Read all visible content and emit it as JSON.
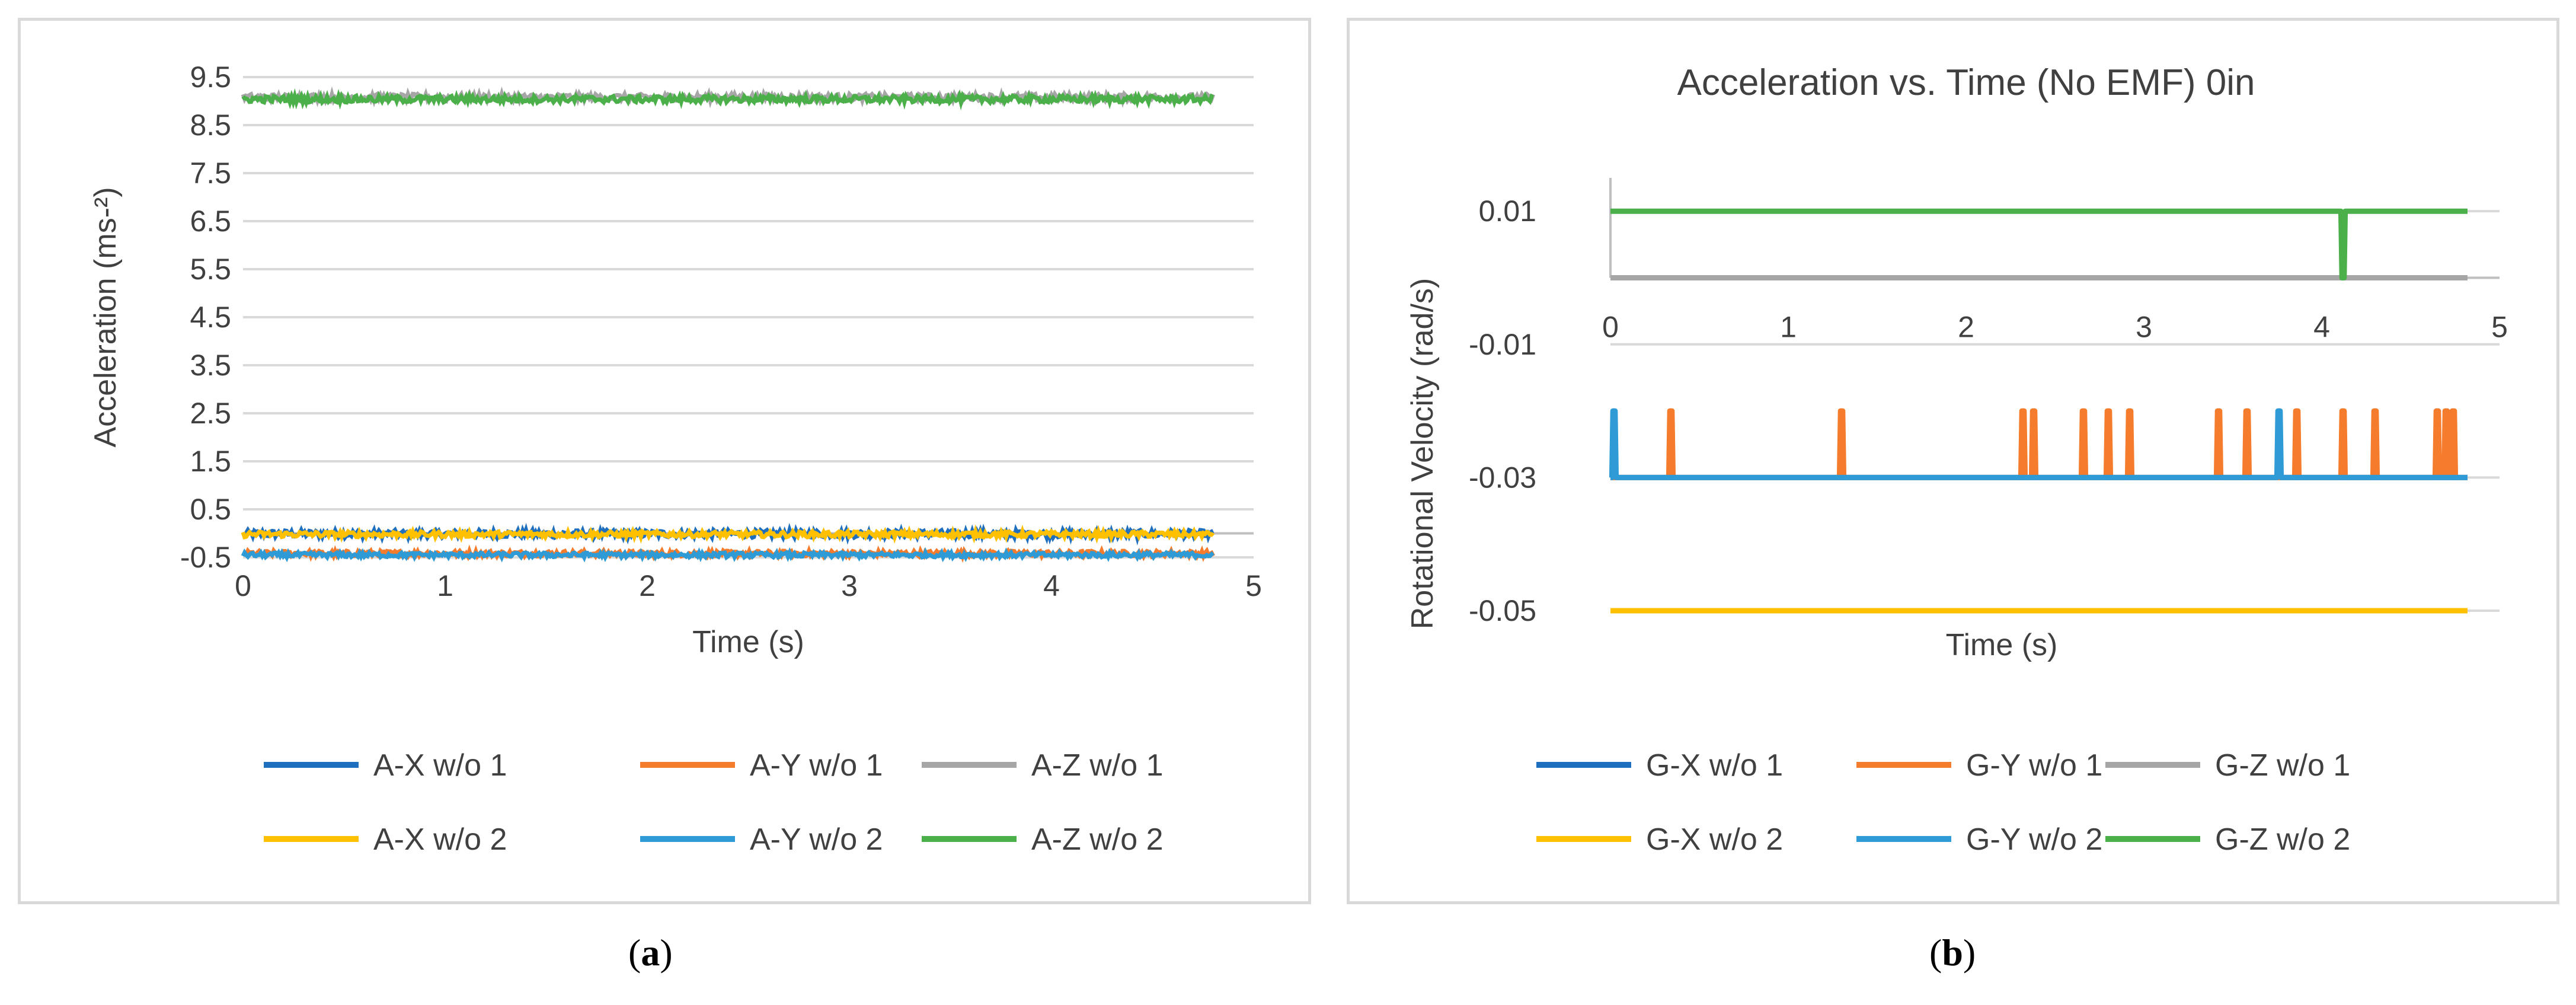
{
  "captions": {
    "a_open": "(",
    "a_letter": "a",
    "a_close": ")",
    "b_open": "(",
    "b_letter": "b",
    "b_close": ")"
  },
  "colors": {
    "dark_blue": "#1f6fbf",
    "orange": "#f47c2c",
    "gray": "#a6a6a6",
    "yellow": "#ffc000",
    "light_blue": "#2e9bd6",
    "green": "#4cb04a"
  },
  "chart_data": [
    {
      "type": "line",
      "title": "",
      "xlabel": "Time (s)",
      "ylabel": "Acceleration (ms-²)",
      "xlim": [
        0,
        5
      ],
      "ylim": [
        -0.5,
        9.5
      ],
      "x_ticks": [
        "0",
        "1",
        "2",
        "3",
        "4",
        "5"
      ],
      "y_ticks": [
        "9.5",
        "8.5",
        "7.5",
        "6.5",
        "5.5",
        "4.5",
        "3.5",
        "2.5",
        "1.5",
        "0.5",
        "-0.5"
      ],
      "series": [
        {
          "name": "A-X w/o 1",
          "color": "#1f6fbf",
          "x_range": [
            0,
            4.8
          ],
          "mean": -0.01,
          "noise": 0.08
        },
        {
          "name": "A-Y w/o 1",
          "color": "#f47c2c",
          "x_range": [
            0,
            4.8
          ],
          "mean": -0.42,
          "noise": 0.06
        },
        {
          "name": "A-Z w/o 1",
          "color": "#a6a6a6",
          "x_range": [
            0,
            4.8
          ],
          "mean": 9.08,
          "noise": 0.07
        },
        {
          "name": "A-X w/o 2",
          "color": "#ffc000",
          "x_range": [
            0,
            4.8
          ],
          "mean": -0.02,
          "noise": 0.06
        },
        {
          "name": "A-Y w/o 2",
          "color": "#2e9bd6",
          "x_range": [
            0,
            4.8
          ],
          "mean": -0.45,
          "noise": 0.05
        },
        {
          "name": "A-Z w/o 2",
          "color": "#4cb04a",
          "x_range": [
            0,
            4.8
          ],
          "mean": 9.04,
          "noise": 0.07
        }
      ]
    },
    {
      "type": "line",
      "title": "Acceleration vs. Time (No EMF) 0in",
      "xlabel": "Time (s)",
      "ylabel": "Rotational Velocity (rad/s)",
      "xlim": [
        0,
        5
      ],
      "ylim": [
        -0.05,
        0.015
      ],
      "x_ticks": [
        "0",
        "1",
        "2",
        "3",
        "4",
        "5"
      ],
      "y_ticks": [
        "0.01",
        "-0.01",
        "-0.03",
        "-0.05"
      ],
      "y_tick_values": [
        0.01,
        -0.01,
        -0.03,
        -0.05
      ],
      "series": [
        {
          "name": "G-X w/o 1",
          "color": "#1f6fbf",
          "x_range": [
            0,
            4.82
          ],
          "base": -0.03,
          "spikes": []
        },
        {
          "name": "G-Y w/o 1",
          "color": "#f47c2c",
          "x_range": [
            0,
            4.82
          ],
          "base": -0.03,
          "spike_to": -0.02,
          "spikes": [
            0.34,
            1.3,
            2.32,
            2.38,
            2.66,
            2.8,
            2.92,
            3.42,
            3.58,
            3.86,
            4.12,
            4.3,
            4.65,
            4.7,
            4.74
          ]
        },
        {
          "name": "G-Z w/o 1",
          "color": "#a6a6a6",
          "x_range": [
            0,
            4.82
          ],
          "base": 0.0,
          "spikes": []
        },
        {
          "name": "G-X w/o 2",
          "color": "#ffc000",
          "x_range": [
            0,
            4.82
          ],
          "base": -0.05,
          "spikes": []
        },
        {
          "name": "G-Y w/o 2",
          "color": "#2e9bd6",
          "x_range": [
            0,
            4.82
          ],
          "base": -0.03,
          "spike_to": -0.02,
          "spikes": [
            0.02,
            3.76
          ]
        },
        {
          "name": "G-Z w/o 2",
          "color": "#4cb04a",
          "x_range": [
            0,
            4.82
          ],
          "base": 0.01,
          "spike_to": 0.0,
          "spikes": [
            4.12
          ]
        }
      ]
    }
  ]
}
